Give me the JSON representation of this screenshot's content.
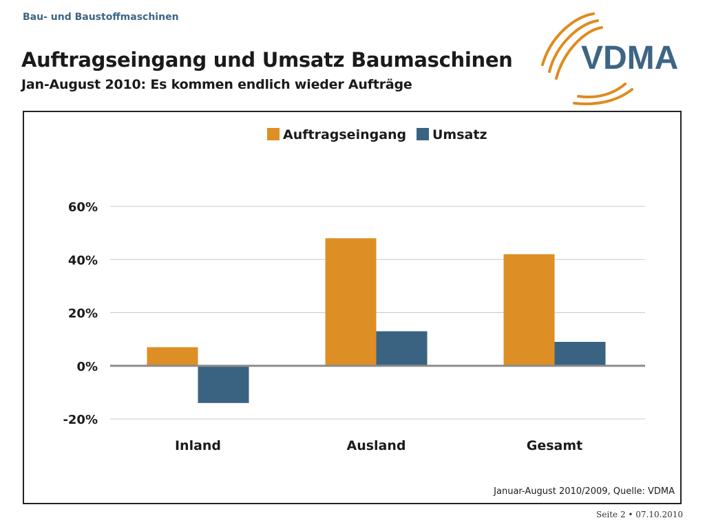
{
  "header": {
    "section": "Bau- und Baustoffmaschinen",
    "title": "Auftragseingang und Umsatz Baumaschinen",
    "subtitle": "Jan-August 2010: Es kommen endlich wieder Aufträge"
  },
  "logo": {
    "text": "VDMA",
    "text_color": "#3d6584",
    "arc_color": "#e08a1e"
  },
  "source": "Januar-August 2010/2009, Quelle: VDMA",
  "footer": {
    "page": "Seite 2 • 07.10.2010"
  },
  "chart_data": {
    "type": "bar",
    "categories": [
      "Inland",
      "Ausland",
      "Gesamt"
    ],
    "series": [
      {
        "name": "Auftragseingang",
        "values": [
          7,
          48,
          42
        ],
        "color": "#dd8f25"
      },
      {
        "name": "Umsatz",
        "values": [
          -14,
          13,
          9
        ],
        "color": "#3a6382"
      }
    ],
    "ylim": [
      -20,
      60
    ],
    "yticks": [
      -20,
      0,
      20,
      40,
      60
    ],
    "ytick_labels": [
      "-20%",
      "0%",
      "20%",
      "40%",
      "60%"
    ],
    "grid": true,
    "legend": "top-center",
    "xlabel": "",
    "ylabel": ""
  }
}
